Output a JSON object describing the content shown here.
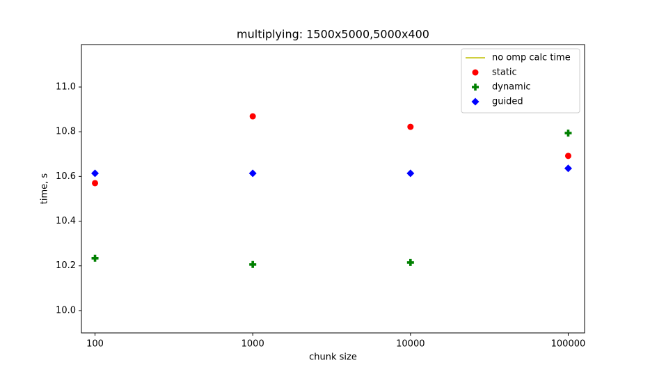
{
  "chart_data": {
    "type": "scatter",
    "title": "multiplying: 1500x5000,5000x400",
    "x_label": "chunk size",
    "y_label": "time, s",
    "x_scale": "log",
    "xlim": [
      82,
      127000
    ],
    "ylim": [
      9.9,
      11.19
    ],
    "xticks": [
      100,
      1000,
      10000,
      100000
    ],
    "yticks": [
      {
        "value": 10.0,
        "label": "10.0"
      },
      {
        "value": 10.2,
        "label": "10.2"
      },
      {
        "value": 10.4,
        "label": "10.4"
      },
      {
        "value": 10.6,
        "label": "10.6"
      },
      {
        "value": 10.8,
        "label": "10.8"
      },
      {
        "value": 11.0,
        "label": "11.0"
      }
    ],
    "legend": "upper right",
    "x": [
      100,
      1000,
      10000,
      100000
    ],
    "series": [
      {
        "name": "no omp calc time",
        "color": "#bfbf00",
        "marker": "line",
        "values": []
      },
      {
        "name": "static",
        "color": "#ff0000",
        "marker": "circle",
        "values": [
          10.57,
          10.869,
          10.822,
          10.692
        ]
      },
      {
        "name": "dynamic",
        "color": "#008000",
        "marker": "plus",
        "values": [
          10.234,
          10.206,
          10.215,
          10.794
        ]
      },
      {
        "name": "guided",
        "color": "#0000ff",
        "marker": "diamond",
        "values": [
          10.614,
          10.614,
          10.614,
          10.636
        ]
      }
    ]
  }
}
